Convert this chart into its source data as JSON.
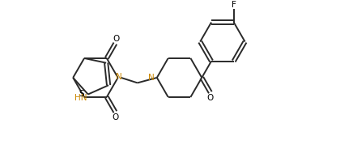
{
  "background_color": "#ffffff",
  "line_color": "#2a2a2a",
  "text_color": "#000000",
  "label_color_N": "#cc8800",
  "label_color_S": "#000000",
  "linewidth": 1.4,
  "figsize": [
    4.36,
    1.89
  ],
  "dpi": 100,
  "xlim": [
    0,
    10.9
  ],
  "ylim": [
    0,
    4.725
  ]
}
